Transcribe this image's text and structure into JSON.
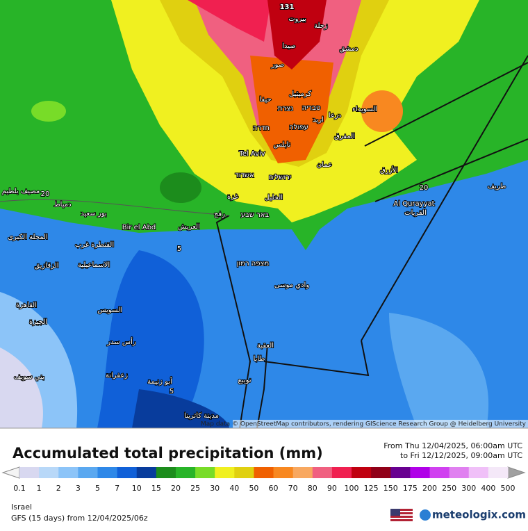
{
  "map": {
    "labels": [
      "131",
      "بيروت",
      "زحلة",
      "صيدا",
      "دمشق",
      "صور",
      "كرميئيل",
      "حيفا",
      "נצרת",
      "טבריה",
      "درعا",
      "السويداء",
      "עפולה",
      "اربد",
      "חדרה",
      "المفرق",
      "Tel Aviv",
      "نابلس",
      "عمان",
      "الأزرق",
      "אשדוד",
      "ירושלים",
      "غزة",
      "الخليل",
      "رفح",
      "באר שבע",
      "Al Qurayyat",
      "القريات",
      "طريف",
      "مصيف بلطيم",
      "دمياط",
      "بور سعيد",
      "Bir el Abd",
      "العريش",
      "المحلة الكبرى",
      "القنطرة غرب",
      "الاسماعيلية",
      "الزقازيق",
      "מצפה רמון",
      "وادي موسى",
      "السويس",
      "القاهرة",
      "الجيزة",
      "رأس سدر",
      "العقبة",
      "طابا",
      "زعفرانة",
      "أبو زنيمة",
      "نويبع",
      "بني سويف",
      "مدينة كاترينا",
      "20",
      "20",
      "5",
      "5"
    ],
    "attribution": "Map data © OpenStreetMap contributors, rendering GIScience Research Group @ Heidelberg University"
  },
  "header": {
    "title": "Accumulated total precipitation (mm)",
    "from": "From Thu 12/04/2025, 06:00am UTC",
    "to": "to Fri 12/12/2025, 09:00am UTC"
  },
  "legend": {
    "ticks": [
      0.1,
      1,
      2,
      3,
      5,
      7,
      10,
      15,
      20,
      25,
      30,
      40,
      50,
      60,
      70,
      80,
      90,
      100,
      125,
      150,
      175,
      200,
      250,
      300,
      400,
      500
    ],
    "colors": [
      "#d8d8f0",
      "#b8d8f8",
      "#8cc4f8",
      "#5aa8f0",
      "#2e88e8",
      "#1060d8",
      "#083c9c",
      "#1c8c1c",
      "#28b428",
      "#78dc28",
      "#f0f020",
      "#e0d010",
      "#f06000",
      "#f88820",
      "#f8a860",
      "#f06080",
      "#f02050",
      "#c00010",
      "#900018",
      "#680090",
      "#b000e8",
      "#d040f0",
      "#e080f0",
      "#f0c0f8",
      "#f4e8f8"
    ]
  },
  "footer": {
    "region": "Israel",
    "model": "GFS (15 days) from 12/04/2025/06z",
    "brand": "meteologix.com"
  }
}
